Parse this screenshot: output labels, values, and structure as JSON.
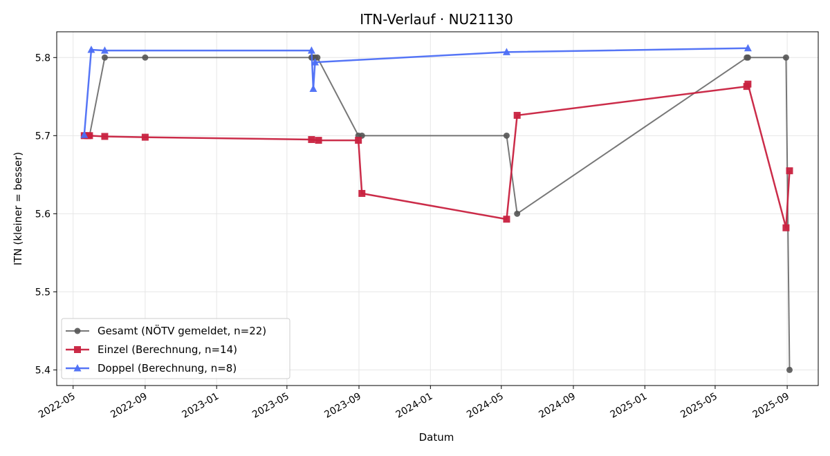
{
  "chart_data": {
    "type": "line",
    "title": "ITN-Verlauf · NU21130",
    "xlabel": "Datum",
    "ylabel": "ITN  (kleiner = besser)",
    "x_axis_type": "date",
    "xlim": [
      "2022-04-03",
      "2025-10-24"
    ],
    "ylim": [
      5.38,
      5.833
    ],
    "x_ticks": [
      "2022-05-01",
      "2022-09-01",
      "2023-01-01",
      "2023-05-01",
      "2023-09-01",
      "2024-01-01",
      "2024-05-01",
      "2024-09-01",
      "2025-01-01",
      "2025-05-01",
      "2025-09-01"
    ],
    "x_tick_labels": [
      "2022-05",
      "2022-09",
      "2023-01",
      "2023-05",
      "2023-09",
      "2024-01",
      "2024-05",
      "2024-09",
      "2025-01",
      "2025-05",
      "2025-09"
    ],
    "y_ticks": [
      5.4,
      5.5,
      5.6,
      5.7,
      5.8
    ],
    "y_tick_labels": [
      "5.4",
      "5.5",
      "5.6",
      "5.7",
      "5.8"
    ],
    "grid": true,
    "legend_position": "lower-left",
    "series": [
      {
        "name": "Gesamt (NÖTV gemeldet, n=22)",
        "color": "#555555",
        "marker": "circle",
        "points": [
          {
            "x": "2022-05-20",
            "y": 5.7
          },
          {
            "x": "2022-05-26",
            "y": 5.7
          },
          {
            "x": "2022-05-29",
            "y": 5.7
          },
          {
            "x": "2022-06-24",
            "y": 5.8
          },
          {
            "x": "2022-09-01",
            "y": 5.8
          },
          {
            "x": "2023-06-12",
            "y": 5.8
          },
          {
            "x": "2023-06-14",
            "y": 5.8
          },
          {
            "x": "2023-06-18",
            "y": 5.8
          },
          {
            "x": "2023-06-22",
            "y": 5.8
          },
          {
            "x": "2023-08-31",
            "y": 5.7
          },
          {
            "x": "2023-09-06",
            "y": 5.7
          },
          {
            "x": "2024-05-10",
            "y": 5.7
          },
          {
            "x": "2024-05-28",
            "y": 5.6
          },
          {
            "x": "2025-06-24",
            "y": 5.8
          },
          {
            "x": "2025-06-26",
            "y": 5.8
          },
          {
            "x": "2025-08-30",
            "y": 5.8
          },
          {
            "x": "2025-09-05",
            "y": 5.4
          }
        ]
      },
      {
        "name": "Einzel (Berechnung, n=14)",
        "color": "#c8213f",
        "marker": "square",
        "points": [
          {
            "x": "2022-05-20",
            "y": 5.7
          },
          {
            "x": "2022-05-26",
            "y": 5.7
          },
          {
            "x": "2022-05-29",
            "y": 5.7
          },
          {
            "x": "2022-06-24",
            "y": 5.699
          },
          {
            "x": "2022-09-01",
            "y": 5.698
          },
          {
            "x": "2023-06-12",
            "y": 5.695
          },
          {
            "x": "2023-06-24",
            "y": 5.694
          },
          {
            "x": "2023-08-31",
            "y": 5.694
          },
          {
            "x": "2023-09-06",
            "y": 5.626
          },
          {
            "x": "2024-05-10",
            "y": 5.593
          },
          {
            "x": "2024-05-28",
            "y": 5.726
          },
          {
            "x": "2025-06-24",
            "y": 5.763
          },
          {
            "x": "2025-06-26",
            "y": 5.766
          },
          {
            "x": "2025-08-30",
            "y": 5.582
          },
          {
            "x": "2025-09-05",
            "y": 5.655
          }
        ]
      },
      {
        "name": "Doppel (Berechnung, n=8)",
        "color": "#4c6ef5",
        "marker": "triangle",
        "points": [
          {
            "x": "2022-05-20",
            "y": 5.701
          },
          {
            "x": "2022-06-01",
            "y": 5.81
          },
          {
            "x": "2022-06-24",
            "y": 5.809
          },
          {
            "x": "2023-06-12",
            "y": 5.809
          },
          {
            "x": "2023-06-15",
            "y": 5.76
          },
          {
            "x": "2023-06-18",
            "y": 5.794
          },
          {
            "x": "2024-05-10",
            "y": 5.807
          },
          {
            "x": "2025-06-26",
            "y": 5.812
          }
        ]
      }
    ]
  }
}
